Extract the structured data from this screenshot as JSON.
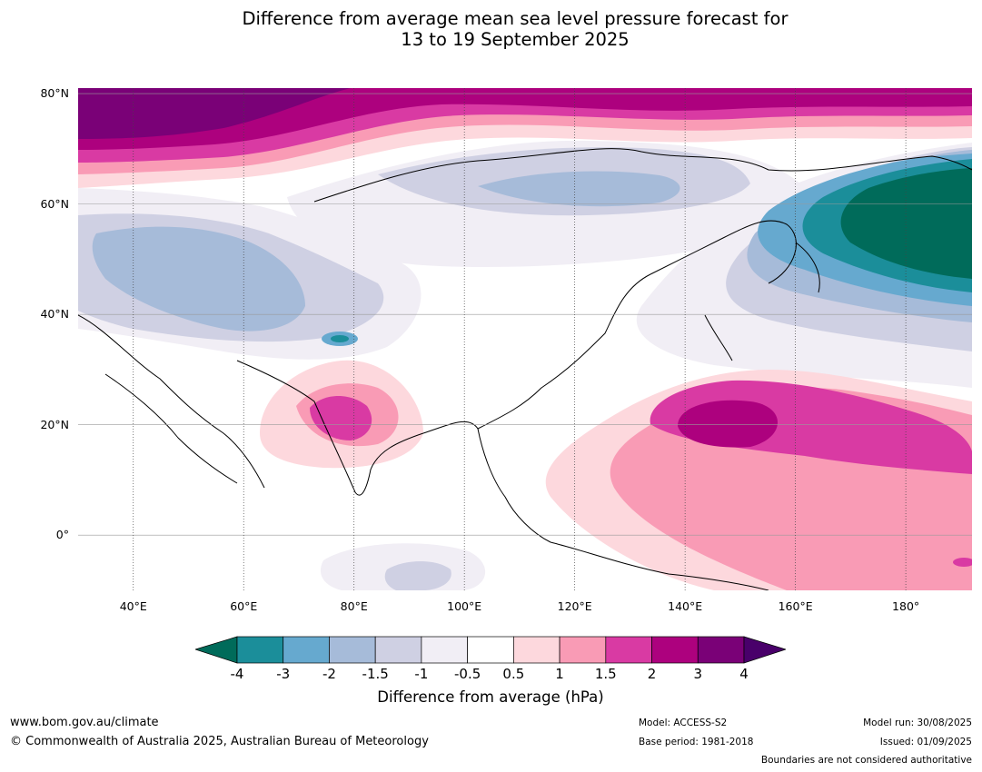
{
  "title_line1": "Difference from average mean sea level pressure forecast for",
  "title_line2": "13 to 19 September 2025",
  "map": {
    "projection": "equirectangular",
    "lon_range": [
      30,
      192
    ],
    "lat_range": [
      -10,
      81
    ],
    "lat_labels": [
      "80°N",
      "60°N",
      "40°N",
      "20°N",
      "0°"
    ],
    "lon_labels": [
      "40°E",
      "60°E",
      "80°E",
      "100°E",
      "120°E",
      "140°E",
      "160°E",
      "180°"
    ],
    "anomaly_regions": [
      {
        "name": "Arctic Ocean high",
        "level": "4"
      },
      {
        "name": "North Pacific low",
        "level": "-4"
      },
      {
        "name": "West Pacific high",
        "level": "3"
      },
      {
        "name": "India high",
        "level": "2"
      },
      {
        "name": "Central Asia low",
        "level": "-2"
      },
      {
        "name": "Siberia low",
        "level": "-2"
      }
    ]
  },
  "colorbar": {
    "ticks": [
      "-4",
      "-3",
      "-2",
      "-1.5",
      "-1",
      "-0.5",
      "0.5",
      "1",
      "1.5",
      "2",
      "3",
      "4"
    ],
    "colors": [
      "#006b5a",
      "#1b8e9a",
      "#66a9cf",
      "#a6bbd9",
      "#cfd0e3",
      "#f1eef5",
      "#ffffff",
      "#fdd8dd",
      "#f99bb5",
      "#d93aa3",
      "#ad017e",
      "#7a0177",
      "#49006a"
    ],
    "label": "Difference from average (hPa)"
  },
  "footer": {
    "url": "www.bom.gov.au/climate",
    "copyright": "© Commonwealth of Australia 2025, Australian Bureau of Meteorology",
    "model": "Model: ACCESS-S2",
    "base_period": "Base period: 1981-2018",
    "model_run": "Model run: 30/08/2025",
    "issued": "Issued: 01/09/2025",
    "disclaimer": "Boundaries are not considered authoritative"
  }
}
